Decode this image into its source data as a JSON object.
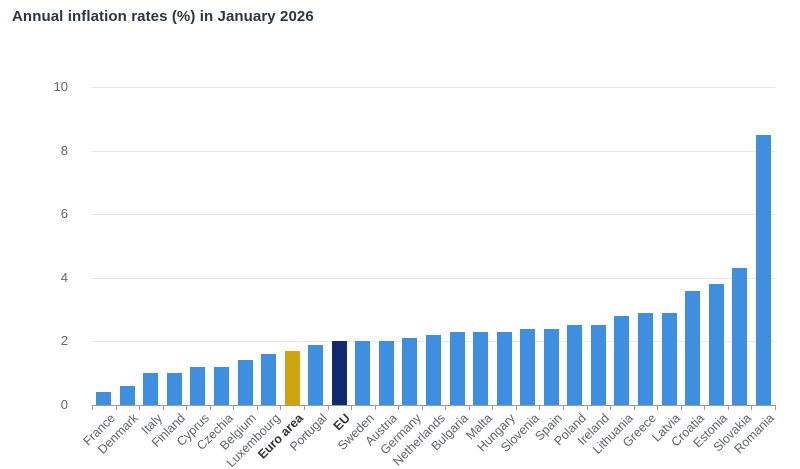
{
  "title": "Annual inflation rates (%) in January 2026",
  "colors": {
    "bar_default": "#3f8fe0",
    "bar_euro_area": "#cfa50f",
    "bar_eu": "#112a6e",
    "title_text": "#2e3542",
    "axis_text": "#666666",
    "category_text": "#5f6368",
    "category_text_bold": "#333333",
    "gridline": "#e7e7f1",
    "axis_line": "#9b9b9b"
  },
  "chart_data": {
    "type": "bar",
    "title": "Annual inflation rates (%) in January 2026",
    "xlabel": "",
    "ylabel": "",
    "ylim": [
      0,
      10
    ],
    "yticks": [
      0,
      2,
      4,
      6,
      8,
      10
    ],
    "grid": true,
    "legend": "none",
    "categories": [
      "France",
      "Denmark",
      "Italy",
      "Finland",
      "Cyprus",
      "Czechia",
      "Belgium",
      "Luxembourg",
      "Euro area",
      "Portugal",
      "EU",
      "Sweden",
      "Austria",
      "Germany",
      "Netherlands",
      "Bulgaria",
      "Malta",
      "Hungary",
      "Slovenia",
      "Spain",
      "Poland",
      "Ireland",
      "Lithuania",
      "Greece",
      "Latvia",
      "Croatia",
      "Estonia",
      "Slovakia",
      "Romania"
    ],
    "values": [
      0.4,
      0.6,
      1.0,
      1.0,
      1.2,
      1.2,
      1.4,
      1.6,
      1.7,
      1.9,
      2.0,
      2.0,
      2.0,
      2.1,
      2.2,
      2.3,
      2.3,
      2.3,
      2.4,
      2.4,
      2.5,
      2.5,
      2.8,
      2.9,
      2.9,
      3.6,
      3.8,
      4.3,
      8.5
    ],
    "bold_categories": [
      "Euro area",
      "EU"
    ],
    "category_colors": {
      "Euro area": "#cfa50f",
      "EU": "#112a6e"
    },
    "default_bar_color": "#3f8fe0"
  }
}
